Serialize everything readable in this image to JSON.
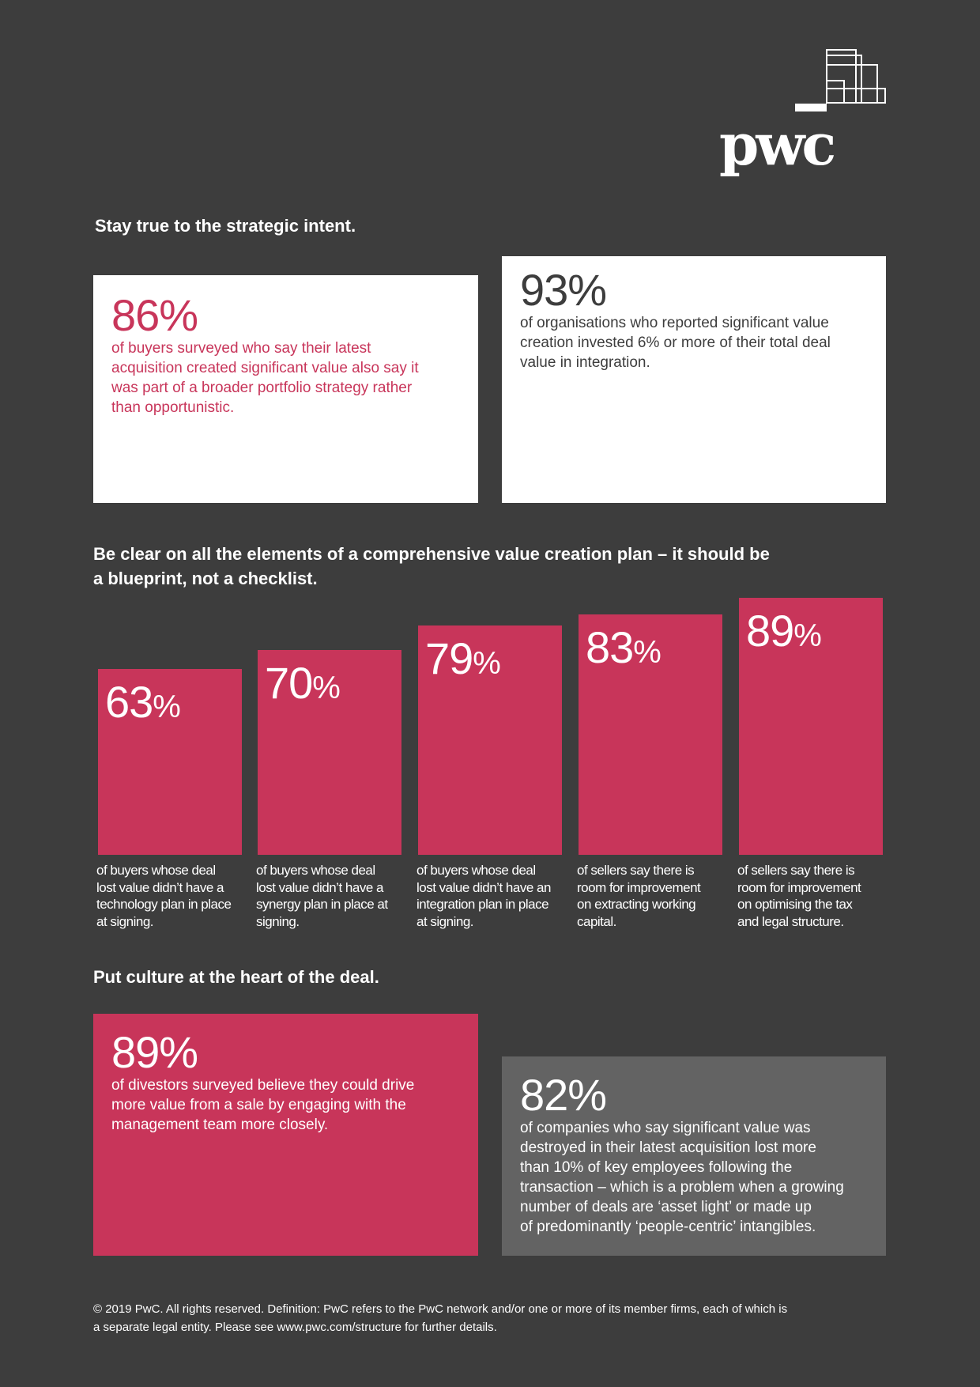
{
  "brand": {
    "logo_text": "pwc",
    "accent": "#c8355a",
    "background": "#3d3d3d",
    "gray_box": "#636363"
  },
  "section1": {
    "heading": "Stay true to the strategic intent.",
    "card1": {
      "value": "86%",
      "lines": [
        "of buyers surveyed who say their latest",
        "acquisition created significant value also say it",
        "was part of a broader portfolio strategy rather",
        "than opportunistic."
      ]
    },
    "card2": {
      "value": "93%",
      "lines": [
        "of organisations who reported significant value",
        "creation invested 6% or more of their total deal",
        "value in integration."
      ]
    }
  },
  "section2": {
    "heading_lines": [
      "Be clear on all the elements of a comprehensive value creation plan – it should be",
      "a blueprint, not a checklist."
    ]
  },
  "chart_data": {
    "type": "bar",
    "categories": [
      "technology plan",
      "synergy plan",
      "integration plan",
      "working capital",
      "tax and legal structure"
    ],
    "values": [
      63,
      70,
      79,
      83,
      89
    ],
    "value_labels": [
      "63",
      "70",
      "79",
      "83",
      "89"
    ],
    "unit": "%",
    "captions": [
      [
        "of buyers whose deal",
        "lost value didn’t have a",
        "technology plan in place",
        "at signing."
      ],
      [
        "of buyers whose deal",
        "lost value didn’t have a",
        "synergy plan in place at",
        "signing."
      ],
      [
        "of buyers whose deal",
        "lost value didn’t have an",
        "integration plan in place",
        "at signing."
      ],
      [
        "of sellers say there is",
        "room for improvement",
        "on extracting working",
        "capital."
      ],
      [
        "of sellers say there is",
        "room for improvement",
        "on optimising the tax",
        "and legal structure."
      ]
    ]
  },
  "section3": {
    "heading": "Put culture at the heart of the deal.",
    "card1": {
      "value": "89%",
      "lines": [
        "of divestors surveyed believe they could drive",
        "more value from a sale by engaging with the",
        "management team more closely."
      ]
    },
    "card2": {
      "value": "82%",
      "lines": [
        "of companies who say significant value was",
        "destroyed in their latest acquisition lost more",
        "than 10% of key employees following the",
        "transaction – which is a problem when a growing",
        "number of deals are ‘asset light’ or made up",
        "of predominantly ‘people-centric’ intangibles."
      ]
    }
  },
  "footer": {
    "lines": [
      "© 2019 PwC. All rights reserved. Definition: PwC refers to the PwC network and/or one or more of its member firms, each of which is",
      "a separate legal entity. Please see www.pwc.com/structure for further details."
    ]
  }
}
